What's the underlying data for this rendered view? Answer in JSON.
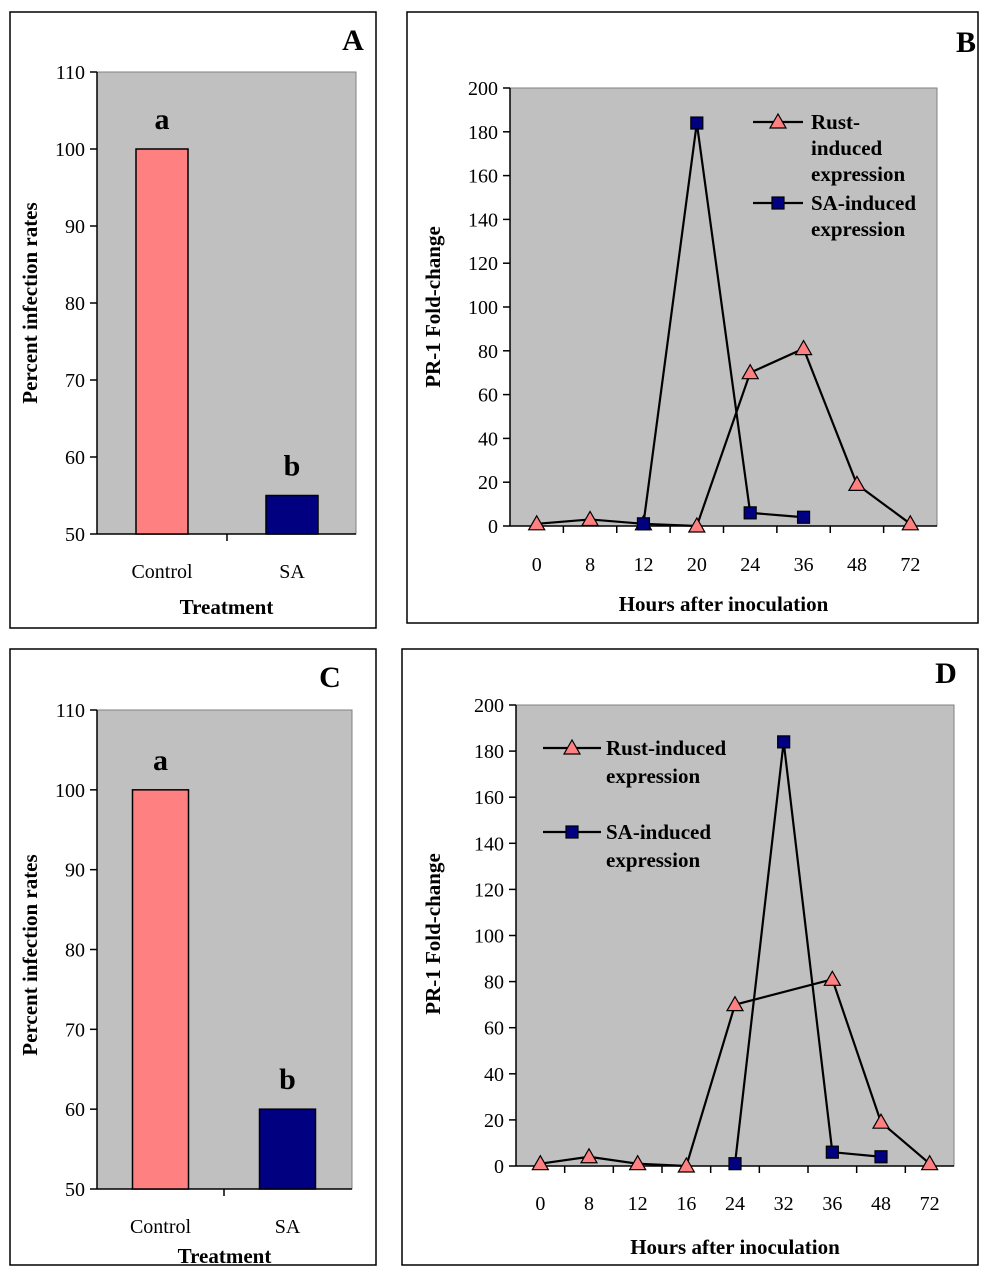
{
  "chart_data": [
    {
      "panel": "A",
      "type": "bar",
      "categories": [
        "Control",
        "SA"
      ],
      "values": [
        100,
        55
      ],
      "colors": [
        "#ff8080",
        "#000080"
      ],
      "bar_labels": [
        "a",
        "b"
      ],
      "xlabel": "Treatment",
      "ylabel": "Percent infection rates",
      "ylim": [
        50,
        110
      ],
      "yticks": [
        50,
        60,
        70,
        80,
        90,
        100,
        110
      ],
      "plot_background": "#c0c0c0"
    },
    {
      "panel": "B",
      "type": "line",
      "categories": [
        "0",
        "8",
        "12",
        "20",
        "24",
        "36",
        "48",
        "72"
      ],
      "series": [
        {
          "name": "Rust-induced expression",
          "legend_lines": [
            "Rust-",
            "induced",
            "expression"
          ],
          "marker": "triangle",
          "color": "#ff8080",
          "values": [
            1,
            3,
            1,
            0,
            70,
            81,
            19,
            1
          ]
        },
        {
          "name": "SA-induced expression",
          "legend_lines": [
            "SA-induced",
            "expression"
          ],
          "marker": "square",
          "color": "#000080",
          "values": [
            null,
            null,
            1,
            184,
            6,
            4,
            null,
            null
          ]
        }
      ],
      "xlabel": "Hours after inoculation",
      "ylabel": "PR-1 Fold-change",
      "ylim": [
        0,
        200
      ],
      "yticks": [
        0,
        20,
        40,
        60,
        80,
        100,
        120,
        140,
        160,
        180,
        200
      ],
      "plot_background": "#c0c0c0",
      "legend_position": "top-right"
    },
    {
      "panel": "C",
      "type": "bar",
      "categories": [
        "Control",
        "SA"
      ],
      "values": [
        100,
        60
      ],
      "colors": [
        "#ff8080",
        "#000080"
      ],
      "bar_labels": [
        "a",
        "b"
      ],
      "xlabel": "Treatment",
      "ylabel": "Percent infection rates",
      "ylim": [
        50,
        110
      ],
      "yticks": [
        50,
        60,
        70,
        80,
        90,
        100,
        110
      ],
      "plot_background": "#c0c0c0"
    },
    {
      "panel": "D",
      "type": "line",
      "categories": [
        "0",
        "8",
        "12",
        "16",
        "24",
        "32",
        "36",
        "48",
        "72"
      ],
      "series": [
        {
          "name": "Rust-induced expression",
          "legend_lines": [
            "Rust-induced",
            "expression"
          ],
          "marker": "triangle",
          "color": "#ff8080",
          "points": [
            [
              0,
              1
            ],
            [
              1,
              4
            ],
            [
              2,
              1
            ],
            [
              3,
              0
            ],
            [
              4,
              70
            ],
            [
              6,
              81
            ],
            [
              7,
              19
            ],
            [
              8,
              1
            ]
          ]
        },
        {
          "name": "SA-induced expression",
          "legend_lines": [
            "SA-induced",
            "expression"
          ],
          "marker": "square",
          "color": "#000080",
          "points": [
            [
              4,
              1
            ],
            [
              5,
              184
            ],
            [
              6,
              6
            ],
            [
              7,
              4
            ]
          ]
        }
      ],
      "xlabel": "Hours after inoculation",
      "ylabel": "PR-1 Fold-change",
      "ylim": [
        0,
        200
      ],
      "yticks": [
        0,
        20,
        40,
        60,
        80,
        100,
        120,
        140,
        160,
        180,
        200
      ],
      "plot_background": "#c0c0c0",
      "legend_position": "top-left"
    }
  ]
}
